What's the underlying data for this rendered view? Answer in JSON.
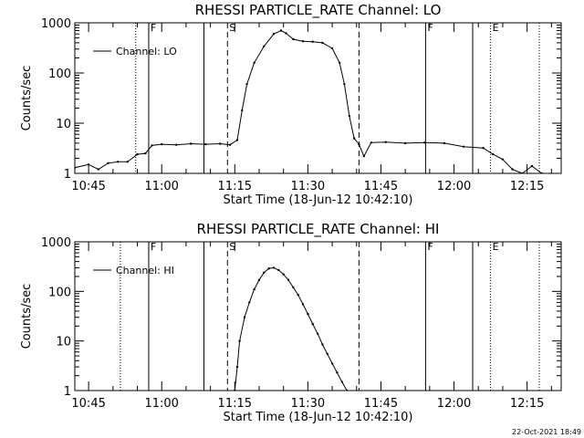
{
  "footer": {
    "timestamp": "22-Oct-2021 18:49"
  },
  "chart_data": [
    {
      "type": "line",
      "title": "RHESSI PARTICLE_RATE Channel: LO",
      "xlabel": "Start Time (18-Jun-12 10:42:10)",
      "ylabel": "Counts/sec",
      "yscale": "log",
      "xlim": [
        "10:42:10",
        "12:22:00"
      ],
      "ylim": [
        1,
        1000
      ],
      "x_ticks": [
        "10:45",
        "11:00",
        "11:15",
        "11:30",
        "11:45",
        "12:00",
        "12:15"
      ],
      "y_ticks": [
        "1",
        "10",
        "100",
        "1000"
      ],
      "legend": {
        "placement": "top-left",
        "entries": [
          "Channel: LO"
        ]
      },
      "series": [
        {
          "name": "Channel: LO",
          "color": "#000000",
          "x": [
            "10:42:10",
            "10:45:00",
            "10:47:00",
            "10:49:00",
            "10:51:00",
            "10:53:00",
            "10:55:00",
            "10:56:40",
            "10:58:00",
            "11:00:00",
            "11:03:00",
            "11:06:00",
            "11:09:00",
            "11:12:00",
            "11:14:00",
            "11:15:30",
            "11:16:30",
            "11:17:30",
            "11:19:00",
            "11:21:00",
            "11:23:00",
            "11:24:30",
            "11:25:30",
            "11:27:00",
            "11:29:00",
            "11:31:00",
            "11:33:00",
            "11:35:00",
            "11:36:30",
            "11:37:30",
            "11:38:30",
            "11:39:30",
            "11:40:30",
            "11:41:30",
            "11:43:00",
            "11:46:00",
            "11:50:00",
            "11:54:00",
            "11:58:00",
            "12:02:00",
            "12:06:00",
            "12:08:00",
            "12:10:00",
            "12:12:00",
            "12:14:00",
            "12:16:00",
            "12:18:00"
          ],
          "y": [
            1.3,
            1.5,
            1.2,
            1.6,
            1.7,
            1.7,
            2.4,
            2.5,
            3.6,
            3.8,
            3.7,
            3.9,
            3.8,
            3.9,
            3.7,
            4.6,
            18,
            60,
            160,
            340,
            600,
            700,
            620,
            470,
            430,
            420,
            400,
            310,
            160,
            60,
            14,
            5,
            3.8,
            2.2,
            4.1,
            4.2,
            4.0,
            4.1,
            4.0,
            3.4,
            3.2,
            2.4,
            1.9,
            1.2,
            1.0,
            1.4,
            1.0
          ]
        }
      ],
      "markers": [
        {
          "time": "10:54:40",
          "style": "dotted",
          "label": ""
        },
        {
          "time": "10:57:20",
          "style": "solid",
          "label": "F"
        },
        {
          "time": "11:08:40",
          "style": "solid",
          "label": ""
        },
        {
          "time": "11:13:30",
          "style": "dashed",
          "label": "S"
        },
        {
          "time": "11:40:30",
          "style": "dashed",
          "label": ""
        },
        {
          "time": "11:54:10",
          "style": "solid",
          "label": "F"
        },
        {
          "time": "12:03:50",
          "style": "solid",
          "label": ""
        },
        {
          "time": "12:07:30",
          "style": "dotted",
          "label": "E"
        },
        {
          "time": "12:17:30",
          "style": "dotted",
          "label": ""
        }
      ]
    },
    {
      "type": "line",
      "title": "RHESSI PARTICLE_RATE Channel: HI",
      "xlabel": "Start Time (18-Jun-12 10:42:10)",
      "ylabel": "Counts/sec",
      "yscale": "log",
      "xlim": [
        "10:42:10",
        "12:22:00"
      ],
      "ylim": [
        1,
        1000
      ],
      "x_ticks": [
        "10:45",
        "11:00",
        "11:15",
        "11:30",
        "11:45",
        "12:00",
        "12:15"
      ],
      "y_ticks": [
        "1",
        "10",
        "100",
        "1000"
      ],
      "legend": {
        "placement": "top-left",
        "entries": [
          "Channel: HI"
        ]
      },
      "series": [
        {
          "name": "Channel: HI",
          "color": "#000000",
          "x": [
            "11:15:00",
            "11:15:30",
            "11:16:00",
            "11:17:00",
            "11:18:00",
            "11:19:00",
            "11:20:00",
            "11:21:00",
            "11:22:00",
            "11:23:00",
            "11:24:00",
            "11:25:00",
            "11:26:00",
            "11:27:00",
            "11:28:00",
            "11:29:00",
            "11:30:00",
            "11:31:00",
            "11:32:00",
            "11:33:00",
            "11:34:00",
            "11:35:00",
            "11:36:00",
            "11:37:00",
            "11:38:00"
          ],
          "y": [
            1.0,
            3,
            10,
            30,
            60,
            110,
            170,
            240,
            290,
            300,
            270,
            220,
            170,
            120,
            85,
            55,
            35,
            22,
            14,
            8.5,
            5.5,
            3.5,
            2.3,
            1.5,
            1.0
          ]
        }
      ],
      "markers": [
        {
          "time": "10:51:30",
          "style": "dotted",
          "label": ""
        },
        {
          "time": "10:57:20",
          "style": "solid",
          "label": "F"
        },
        {
          "time": "11:08:40",
          "style": "solid",
          "label": ""
        },
        {
          "time": "11:13:30",
          "style": "dashed",
          "label": "S"
        },
        {
          "time": "11:40:30",
          "style": "dashed",
          "label": ""
        },
        {
          "time": "11:54:10",
          "style": "solid",
          "label": "F"
        },
        {
          "time": "12:03:50",
          "style": "solid",
          "label": ""
        },
        {
          "time": "12:07:30",
          "style": "dotted",
          "label": "E"
        },
        {
          "time": "12:17:30",
          "style": "dotted",
          "label": ""
        }
      ]
    }
  ]
}
